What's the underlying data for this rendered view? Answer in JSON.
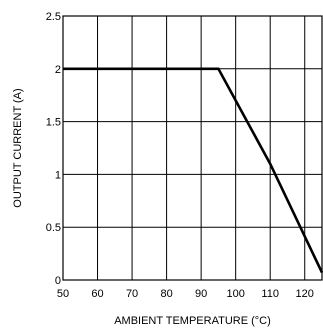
{
  "chart_data": {
    "type": "line",
    "xlabel": "AMBIENT TEMPERATURE (°C)",
    "ylabel": "OUTPUT CURRENT (A)",
    "xlim": [
      50,
      125
    ],
    "ylim": [
      0,
      2.5
    ],
    "x_ticks": [
      "50",
      "60",
      "70",
      "80",
      "90",
      "100",
      "110",
      "120"
    ],
    "y_ticks": [
      "0",
      "0.5",
      "1",
      "1.5",
      "2",
      "2.5"
    ],
    "grid": true,
    "series": [
      {
        "x": [
          50,
          95,
          110,
          125
        ],
        "y": [
          2,
          2,
          1.1,
          0.07
        ]
      }
    ],
    "colors": {
      "line": "#000000",
      "grid": "#000000"
    }
  }
}
